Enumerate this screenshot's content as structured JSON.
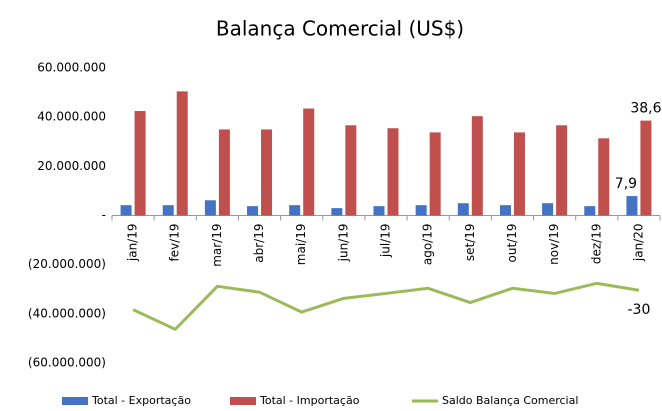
{
  "chart_data": {
    "type": "bar_line",
    "title": "Balança Comercial (US$)",
    "categories": [
      "jan/19",
      "fev/19",
      "mar/19",
      "abr/19",
      "mai/19",
      "jun/19",
      "jul/19",
      "ago/19",
      "set/19",
      "out/19",
      "nov/19",
      "dez/19",
      "jan/20"
    ],
    "series": [
      {
        "name": "Total - Exportação",
        "color": "#4472c4",
        "kind": "bar",
        "values": [
          4200000,
          4200000,
          6200000,
          3800000,
          4200000,
          3000000,
          3800000,
          4200000,
          5000000,
          4200000,
          5000000,
          3800000,
          7900000
        ],
        "value_labels": [
          null,
          null,
          null,
          null,
          null,
          null,
          null,
          null,
          null,
          null,
          null,
          null,
          "7,9"
        ]
      },
      {
        "name": "Total - Importação",
        "color": "#c0504d",
        "kind": "bar",
        "values": [
          42500000,
          50500000,
          35000000,
          35000000,
          43500000,
          36700000,
          35500000,
          33800000,
          40400000,
          33800000,
          36700000,
          31400000,
          38600000
        ],
        "value_labels": [
          null,
          null,
          null,
          null,
          null,
          null,
          null,
          null,
          null,
          null,
          null,
          null,
          "38,6"
        ]
      },
      {
        "name": "Saldo Balança Comercial",
        "color": "#9bbb59",
        "kind": "line",
        "values": [
          -38300000,
          -46300000,
          -28800000,
          -31200000,
          -39300000,
          -33700000,
          -31700000,
          -29600000,
          -35400000,
          -29600000,
          -31700000,
          -27600000,
          -30400000
        ],
        "value_labels": [
          null,
          null,
          null,
          null,
          null,
          null,
          null,
          null,
          null,
          null,
          null,
          null,
          "-30"
        ]
      }
    ],
    "ylim": [
      -60000000,
      60000000
    ],
    "yticks": [
      {
        "value": 60000000,
        "label": "60.000.000"
      },
      {
        "value": 40000000,
        "label": "40.000.000"
      },
      {
        "value": 20000000,
        "label": "20.000.000"
      },
      {
        "value": 0,
        "label": "-"
      },
      {
        "value": -20000000,
        "label": "(20.000.000)"
      },
      {
        "value": -40000000,
        "label": "(40.000.000)"
      },
      {
        "value": -60000000,
        "label": "(60.000.000)"
      }
    ],
    "grid": false,
    "legend": "bottom"
  }
}
